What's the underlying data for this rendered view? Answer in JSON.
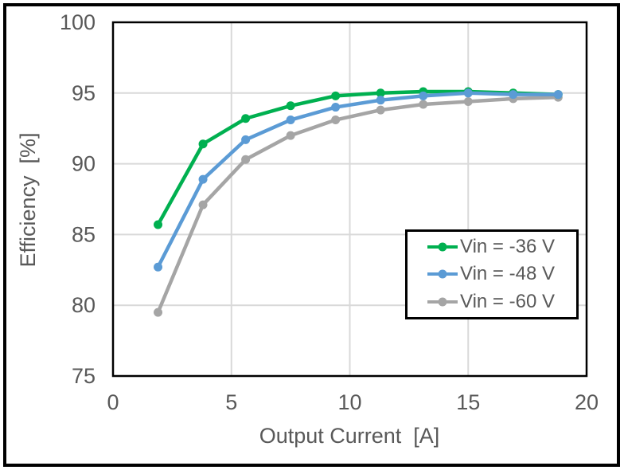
{
  "chart_data": {
    "type": "line",
    "title": "",
    "xlabel": "Output Current  [A]",
    "ylabel": "Efficiency  [%]",
    "xlim": [
      0,
      20
    ],
    "ylim": [
      75,
      100
    ],
    "x_ticks": [
      0,
      5,
      10,
      15,
      20
    ],
    "y_ticks": [
      75,
      80,
      85,
      90,
      95,
      100
    ],
    "grid": true,
    "legend_position": "inside-right",
    "x": [
      1.9,
      3.8,
      5.6,
      7.5,
      9.4,
      11.3,
      13.1,
      15.0,
      16.9,
      18.8
    ],
    "series": [
      {
        "name": "Vin = -36 V",
        "color": "#00B050",
        "values": [
          85.7,
          91.4,
          93.2,
          94.1,
          94.8,
          95.0,
          95.1,
          95.1,
          95.0,
          94.9
        ]
      },
      {
        "name": "Vin = -48 V",
        "color": "#5B9BD5",
        "values": [
          82.7,
          88.9,
          91.7,
          93.1,
          94.0,
          94.5,
          94.8,
          95.0,
          94.9,
          94.9
        ]
      },
      {
        "name": "Vin = -60 V",
        "color": "#A5A5A5",
        "values": [
          79.5,
          87.1,
          90.3,
          92.0,
          93.1,
          93.8,
          94.2,
          94.4,
          94.6,
          94.7
        ]
      }
    ]
  },
  "styles": {
    "axis_text_color": "#595959",
    "gridline_color": "#D9D9D9",
    "plot_border_color": "#000000",
    "background_color": "#FFFFFF",
    "line_width": 4.5,
    "marker_radius": 5.5
  }
}
